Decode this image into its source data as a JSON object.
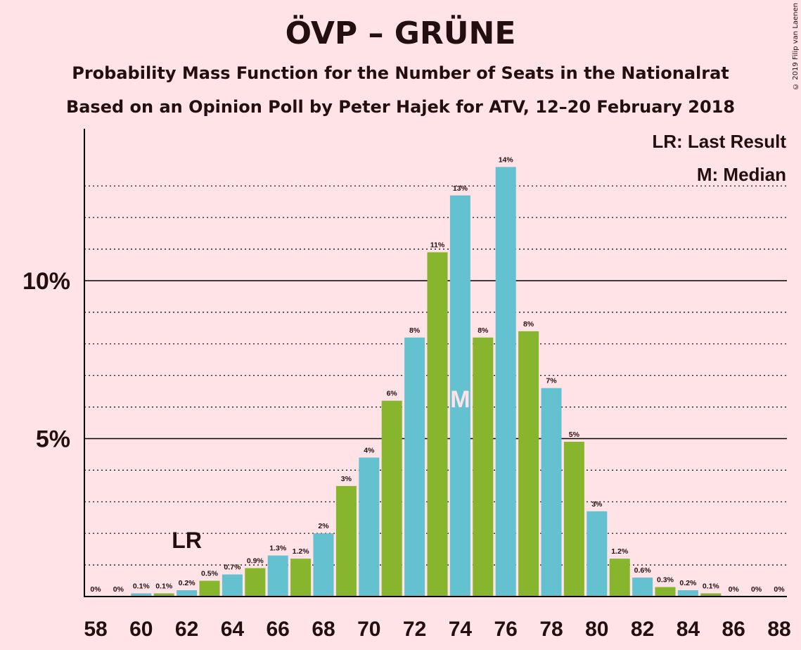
{
  "title": "ÖVP – GRÜNE",
  "subtitle1": "Probability Mass Function for the Number of Seats in the Nationalrat",
  "subtitle2": "Based on an Opinion Poll by Peter Hajek for ATV, 12–20 February 2018",
  "copyright": "© 2019 Filip van Laenen",
  "legend": {
    "last_result": "LR: Last Result",
    "median": "M: Median"
  },
  "colors": {
    "background": "#ffe3e6",
    "bar_blue": "#64c2d0",
    "bar_green": "#88b52e",
    "text": "#230f0f",
    "median_mark": "#ffe3e6"
  },
  "chart_data": {
    "type": "bar",
    "categories": [
      58,
      59,
      60,
      61,
      62,
      63,
      64,
      65,
      66,
      67,
      68,
      69,
      70,
      71,
      72,
      73,
      74,
      75,
      76,
      77,
      78,
      79,
      80,
      81,
      82,
      83,
      84,
      85,
      86,
      87,
      88
    ],
    "values": [
      0,
      0,
      0.1,
      0.1,
      0.2,
      0.5,
      0.7,
      0.9,
      1.3,
      1.2,
      2,
      3.5,
      4.4,
      6.2,
      8.2,
      10.9,
      12.7,
      8.2,
      13.6,
      8.4,
      6.6,
      4.9,
      2.7,
      1.2,
      0.6,
      0.3,
      0.2,
      0.1,
      0,
      0,
      0
    ],
    "labels": [
      "0%",
      "0%",
      "0.1%",
      "0.1%",
      "0.2%",
      "0.5%",
      "0.7%",
      "0.9%",
      "1.3%",
      "1.2%",
      "2%",
      "3%",
      "4%",
      "6%",
      "8%",
      "11%",
      "13%",
      "8%",
      "14%",
      "8%",
      "7%",
      "5%",
      "3%",
      "1.2%",
      "0.6%",
      "0.3%",
      "0.2%",
      "0.1%",
      "0%",
      "0%",
      "0%"
    ],
    "x_tick_labels": [
      "58",
      "60",
      "62",
      "64",
      "66",
      "68",
      "70",
      "72",
      "74",
      "76",
      "78",
      "80",
      "82",
      "84",
      "86",
      "88"
    ],
    "y_tick_labels": [
      "5%",
      "10%"
    ],
    "ylim": [
      0,
      14.8
    ],
    "last_result_seat": 62,
    "last_result_label": "LR",
    "median_seat": 74,
    "median_label": "M",
    "grid": true,
    "legend_position": "top-right"
  }
}
